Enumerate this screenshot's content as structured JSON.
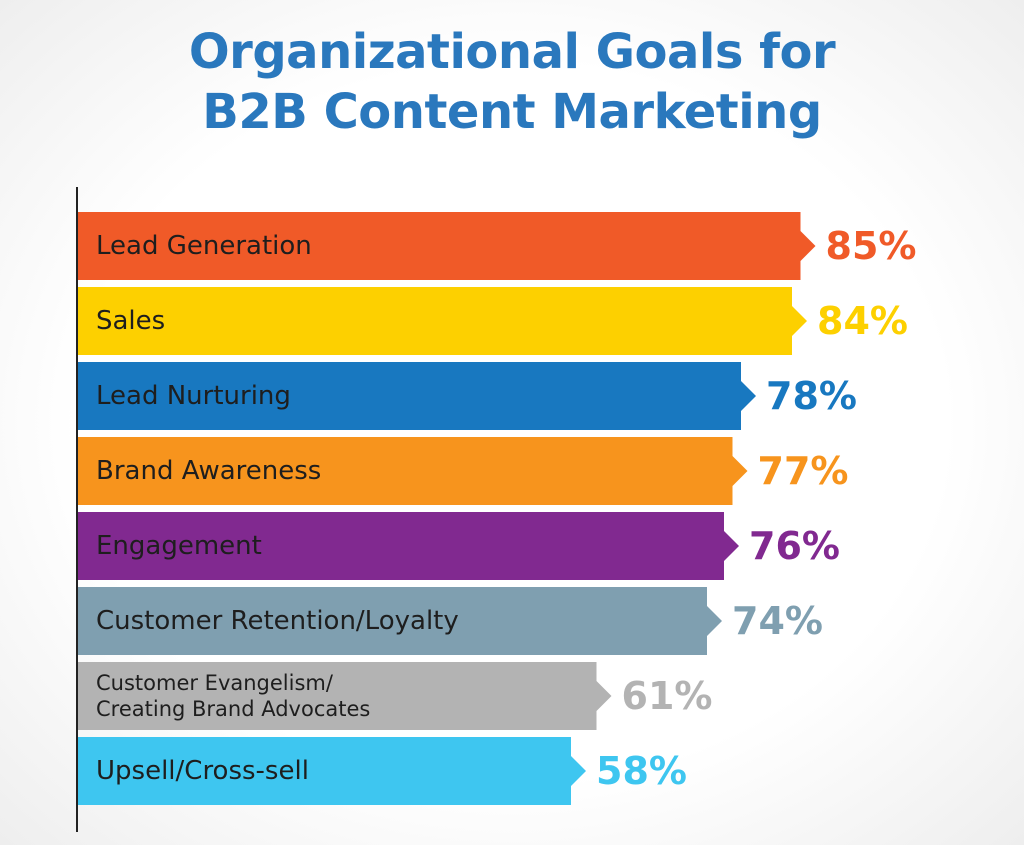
{
  "chart_data": {
    "type": "bar",
    "orientation": "horizontal",
    "title": "Organizational Goals for\nB2B Content Marketing",
    "categories": [
      "Lead Generation",
      "Sales",
      "Lead Nurturing",
      "Brand Awareness",
      "Engagement",
      "Customer Retention/Loyalty",
      "Customer Evangelism/\nCreating Brand Advocates",
      "Upsell/Cross-sell"
    ],
    "values": [
      85,
      84,
      78,
      77,
      76,
      74,
      61,
      58
    ],
    "value_labels": [
      "85%",
      "84%",
      "78%",
      "77%",
      "76%",
      "74%",
      "61%",
      "58%"
    ],
    "colors": [
      "#f05a28",
      "#fdd000",
      "#1878c0",
      "#f7941d",
      "#812990",
      "#7f9fb0",
      "#b3b3b3",
      "#3ec6f0"
    ]
  }
}
